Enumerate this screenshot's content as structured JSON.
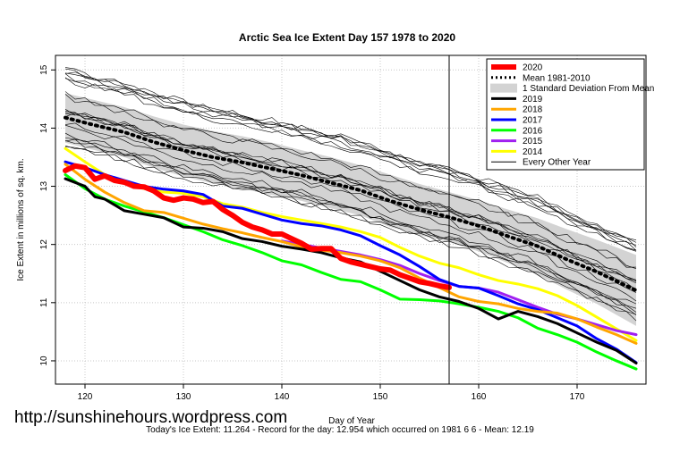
{
  "chart_data": {
    "type": "line",
    "title": "Arctic Sea Ice Extent Day 157 1978 to 2020",
    "xlabel": "Day of Year",
    "ylabel": "Ice Extent in millions of sq. km.",
    "xlim": [
      117,
      177
    ],
    "ylim": [
      9.6,
      15.25
    ],
    "x_ticks": [
      120,
      130,
      140,
      150,
      160,
      170
    ],
    "y_ticks": [
      10,
      11,
      12,
      13,
      14,
      15
    ],
    "grid": true,
    "legend_position": "top-right",
    "current_day_line": 157,
    "sd_band": {
      "name": "1 Standard Deviation From Mean",
      "color": "#d3d3d3",
      "x": [
        118,
        121,
        124,
        127,
        130,
        133,
        136,
        139,
        142,
        145,
        148,
        151,
        154,
        157,
        160,
        163,
        166,
        169,
        172,
        176
      ],
      "upper": [
        14.6,
        14.48,
        14.36,
        14.2,
        14.06,
        13.95,
        13.86,
        13.75,
        13.62,
        13.5,
        13.36,
        13.2,
        13.04,
        12.9,
        12.76,
        12.6,
        12.45,
        12.26,
        12.08,
        11.82
      ],
      "lower": [
        13.75,
        13.62,
        13.5,
        13.32,
        13.17,
        13.05,
        12.96,
        12.85,
        12.75,
        12.62,
        12.5,
        12.3,
        12.16,
        12.04,
        11.88,
        11.68,
        11.48,
        11.22,
        10.98,
        10.6
      ]
    },
    "series": [
      {
        "name": "Mean 1981-2010",
        "color": "#000000",
        "style": "dotted",
        "width": 4,
        "x": [
          118,
          121,
          124,
          127,
          130,
          133,
          136,
          139,
          142,
          145,
          148,
          151,
          154,
          157,
          160,
          163,
          166,
          169,
          172,
          176
        ],
        "values": [
          14.18,
          14.05,
          13.93,
          13.76,
          13.62,
          13.5,
          13.41,
          13.3,
          13.19,
          13.06,
          12.93,
          12.75,
          12.6,
          12.47,
          12.32,
          12.14,
          11.97,
          11.74,
          11.53,
          11.21
        ]
      },
      {
        "name": "2020",
        "color": "#ff0000",
        "style": "solid",
        "width": 6,
        "x": [
          118,
          119,
          120,
          121,
          122,
          123,
          124,
          125,
          126,
          127,
          128,
          129,
          130,
          131,
          132,
          133,
          134,
          135,
          136,
          137,
          138,
          139,
          140,
          141,
          142,
          143,
          144,
          145,
          146,
          147,
          148,
          149,
          150,
          151,
          152,
          153,
          154,
          155,
          156,
          157
        ],
        "values": [
          13.27,
          13.35,
          13.32,
          13.12,
          13.18,
          13.1,
          13.07,
          13.0,
          12.99,
          12.92,
          12.8,
          12.76,
          12.8,
          12.78,
          12.72,
          12.74,
          12.6,
          12.5,
          12.38,
          12.3,
          12.25,
          12.18,
          12.18,
          12.1,
          12.02,
          11.92,
          11.93,
          11.93,
          11.76,
          11.7,
          11.66,
          11.62,
          11.58,
          11.56,
          11.48,
          11.42,
          11.36,
          11.33,
          11.29,
          11.26
        ]
      },
      {
        "name": "2019",
        "color": "#000000",
        "style": "solid",
        "width": 3,
        "x": [
          118,
          120,
          121,
          122,
          124,
          126,
          128,
          130,
          132,
          134,
          136,
          138,
          140,
          142,
          144,
          146,
          148,
          150,
          152,
          154,
          156,
          158,
          160,
          162,
          164,
          166,
          168,
          170,
          172,
          174,
          176
        ],
        "values": [
          13.13,
          13.0,
          12.82,
          12.78,
          12.58,
          12.52,
          12.46,
          12.3,
          12.28,
          12.22,
          12.1,
          12.05,
          11.97,
          11.92,
          11.86,
          11.77,
          11.7,
          11.54,
          11.38,
          11.22,
          11.1,
          11.02,
          10.9,
          10.72,
          10.85,
          10.76,
          10.64,
          10.48,
          10.32,
          10.18,
          9.96
        ]
      },
      {
        "name": "2018",
        "color": "#ffa500",
        "style": "solid",
        "width": 3,
        "x": [
          118,
          120,
          122,
          124,
          126,
          128,
          130,
          132,
          134,
          136,
          138,
          140,
          142,
          144,
          146,
          148,
          150,
          152,
          154,
          156,
          158,
          160,
          162,
          164,
          166,
          168,
          170,
          172,
          174,
          176
        ],
        "values": [
          13.38,
          13.12,
          12.9,
          12.72,
          12.58,
          12.55,
          12.45,
          12.35,
          12.27,
          12.2,
          12.12,
          12.05,
          11.96,
          11.9,
          11.86,
          11.8,
          11.72,
          11.6,
          11.42,
          11.26,
          11.1,
          11.02,
          10.98,
          10.9,
          10.85,
          10.82,
          10.72,
          10.58,
          10.45,
          10.3
        ]
      },
      {
        "name": "2017",
        "color": "#0000ff",
        "style": "solid",
        "width": 3,
        "x": [
          118,
          120,
          122,
          124,
          126,
          128,
          130,
          132,
          134,
          136,
          138,
          140,
          142,
          144,
          146,
          148,
          150,
          152,
          154,
          156,
          158,
          160,
          162,
          164,
          166,
          168,
          170,
          172,
          174,
          176
        ],
        "values": [
          13.42,
          13.32,
          13.2,
          13.1,
          13.0,
          12.95,
          12.92,
          12.86,
          12.66,
          12.62,
          12.52,
          12.42,
          12.36,
          12.32,
          12.25,
          12.15,
          11.98,
          11.82,
          11.62,
          11.4,
          11.28,
          11.25,
          11.12,
          10.98,
          10.88,
          10.74,
          10.6,
          10.38,
          10.2,
          9.97
        ]
      },
      {
        "name": "2016",
        "color": "#00ff00",
        "style": "solid",
        "width": 3,
        "x": [
          118,
          120,
          122,
          124,
          126,
          128,
          130,
          132,
          134,
          136,
          138,
          140,
          142,
          144,
          146,
          148,
          150,
          152,
          154,
          156,
          158,
          160,
          162,
          164,
          166,
          168,
          170,
          172,
          174,
          176
        ],
        "values": [
          13.2,
          12.96,
          12.78,
          12.66,
          12.56,
          12.46,
          12.34,
          12.22,
          12.08,
          11.98,
          11.86,
          11.72,
          11.65,
          11.52,
          11.4,
          11.36,
          11.22,
          11.06,
          11.05,
          11.03,
          10.98,
          10.92,
          10.85,
          10.74,
          10.56,
          10.45,
          10.32,
          10.15,
          10.0,
          9.86
        ]
      },
      {
        "name": "2015",
        "color": "#a020f0",
        "style": "solid",
        "width": 3,
        "x": [
          140,
          142,
          144,
          146,
          148,
          150,
          152,
          154,
          156,
          158,
          160,
          162,
          164,
          166,
          168,
          170,
          172,
          174,
          176
        ],
        "values": [
          12.06,
          12.0,
          11.94,
          11.88,
          11.82,
          11.74,
          11.64,
          11.5,
          11.38,
          11.28,
          11.25,
          11.18,
          11.05,
          10.92,
          10.8,
          10.72,
          10.62,
          10.52,
          10.45
        ]
      },
      {
        "name": "2014",
        "color": "#ffff00",
        "style": "solid",
        "width": 3,
        "x": [
          118,
          120,
          122,
          124,
          126,
          128,
          130,
          132,
          134,
          136,
          138,
          140,
          142,
          144,
          146,
          148,
          150,
          152,
          154,
          156,
          158,
          160,
          162,
          164,
          166,
          168,
          170,
          172,
          174,
          176
        ],
        "values": [
          13.65,
          13.42,
          13.2,
          13.06,
          12.96,
          12.9,
          12.88,
          12.82,
          12.7,
          12.64,
          12.55,
          12.48,
          12.42,
          12.36,
          12.3,
          12.22,
          12.12,
          11.95,
          11.8,
          11.68,
          11.6,
          11.48,
          11.38,
          11.32,
          11.24,
          11.12,
          10.95,
          10.75,
          10.55,
          10.35
        ]
      }
    ],
    "legend": [
      {
        "label": "2020",
        "color": "#ff0000",
        "style": "solid",
        "width": 6
      },
      {
        "label": "Mean 1981-2010",
        "color": "#000000",
        "style": "dotted",
        "width": 3
      },
      {
        "label": "1 Standard Deviation From Mean",
        "color": "#d3d3d3",
        "style": "band",
        "width": 10
      },
      {
        "label": "2019",
        "color": "#000000",
        "style": "solid",
        "width": 3
      },
      {
        "label": "2018",
        "color": "#ffa500",
        "style": "solid",
        "width": 3
      },
      {
        "label": "2017",
        "color": "#0000ff",
        "style": "solid",
        "width": 3
      },
      {
        "label": "2016",
        "color": "#00ff00",
        "style": "solid",
        "width": 3
      },
      {
        "label": "2015",
        "color": "#a020f0",
        "style": "solid",
        "width": 3
      },
      {
        "label": "2014",
        "color": "#ffff00",
        "style": "solid",
        "width": 3
      },
      {
        "label": "Every Other Year",
        "color": "#000000",
        "style": "solid",
        "width": 1
      }
    ]
  },
  "watermark": "http://sunshinehours.wordpress.com",
  "footer": "Today's Ice Extent: 11.264 - Record for the day: 12.954 which occurred on 1981 6 6 - Mean: 12.19"
}
